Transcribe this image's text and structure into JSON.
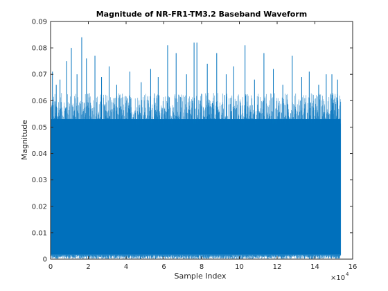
{
  "chart_data": {
    "type": "bar",
    "title": "Magnitude of NR-FR1-TM3.2 Baseband Waveform",
    "xlabel": "Sample Index",
    "ylabel": "Magnitude",
    "xlim": [
      0,
      160000
    ],
    "ylim": [
      0,
      0.09
    ],
    "x_exponent_label": "×10",
    "x_exponent_power": "4",
    "x_tick_values": [
      0,
      20000,
      40000,
      60000,
      80000,
      100000,
      120000,
      140000,
      160000
    ],
    "x_tick_labels": [
      "0",
      "2",
      "4",
      "6",
      "8",
      "10",
      "12",
      "14",
      "16"
    ],
    "y_tick_values": [
      0,
      0.01,
      0.02,
      0.03,
      0.04,
      0.05,
      0.06,
      0.07,
      0.08,
      0.09
    ],
    "y_tick_labels": [
      "0",
      "0.01",
      "0.02",
      "0.03",
      "0.04",
      "0.05",
      "0.06",
      "0.07",
      "0.08",
      "0.09"
    ],
    "series": [
      {
        "sample_count": 153600,
        "color": "#0072BD",
        "solid_band": [
          0.0018,
          0.053
        ],
        "typical_peak_range": [
          0.055,
          0.063
        ],
        "peaks": [
          {
            "x": 1000,
            "y": 0.071
          },
          {
            "x": 3000,
            "y": 0.066
          },
          {
            "x": 5000,
            "y": 0.068
          },
          {
            "x": 8500,
            "y": 0.075
          },
          {
            "x": 11000,
            "y": 0.08
          },
          {
            "x": 14000,
            "y": 0.07
          },
          {
            "x": 16500,
            "y": 0.084
          },
          {
            "x": 19000,
            "y": 0.076
          },
          {
            "x": 23500,
            "y": 0.077
          },
          {
            "x": 27000,
            "y": 0.069
          },
          {
            "x": 31000,
            "y": 0.073
          },
          {
            "x": 35000,
            "y": 0.066
          },
          {
            "x": 42000,
            "y": 0.071
          },
          {
            "x": 48000,
            "y": 0.067
          },
          {
            "x": 53000,
            "y": 0.072
          },
          {
            "x": 57000,
            "y": 0.069
          },
          {
            "x": 62000,
            "y": 0.081
          },
          {
            "x": 66500,
            "y": 0.078
          },
          {
            "x": 72000,
            "y": 0.07
          },
          {
            "x": 76000,
            "y": 0.082
          },
          {
            "x": 77500,
            "y": 0.082
          },
          {
            "x": 83000,
            "y": 0.074
          },
          {
            "x": 88000,
            "y": 0.078
          },
          {
            "x": 93000,
            "y": 0.07
          },
          {
            "x": 97000,
            "y": 0.073
          },
          {
            "x": 103000,
            "y": 0.081
          },
          {
            "x": 108000,
            "y": 0.068
          },
          {
            "x": 113000,
            "y": 0.078
          },
          {
            "x": 118000,
            "y": 0.072
          },
          {
            "x": 123000,
            "y": 0.066
          },
          {
            "x": 128000,
            "y": 0.077
          },
          {
            "x": 133000,
            "y": 0.069
          },
          {
            "x": 137000,
            "y": 0.071
          },
          {
            "x": 142000,
            "y": 0.066
          },
          {
            "x": 146000,
            "y": 0.07
          },
          {
            "x": 149000,
            "y": 0.07
          },
          {
            "x": 152000,
            "y": 0.068
          }
        ],
        "dips": [
          {
            "x": 2000,
            "y": 0.0008
          },
          {
            "x": 9000,
            "y": 0.0006
          },
          {
            "x": 22000,
            "y": 0.001
          },
          {
            "x": 41000,
            "y": 0.0007
          },
          {
            "x": 60000,
            "y": 0.0009
          },
          {
            "x": 79000,
            "y": 0.0005
          },
          {
            "x": 96000,
            "y": 0.0008
          },
          {
            "x": 118000,
            "y": 0.0007
          },
          {
            "x": 133000,
            "y": 0.0009
          },
          {
            "x": 150000,
            "y": 0.0006
          }
        ]
      }
    ]
  }
}
